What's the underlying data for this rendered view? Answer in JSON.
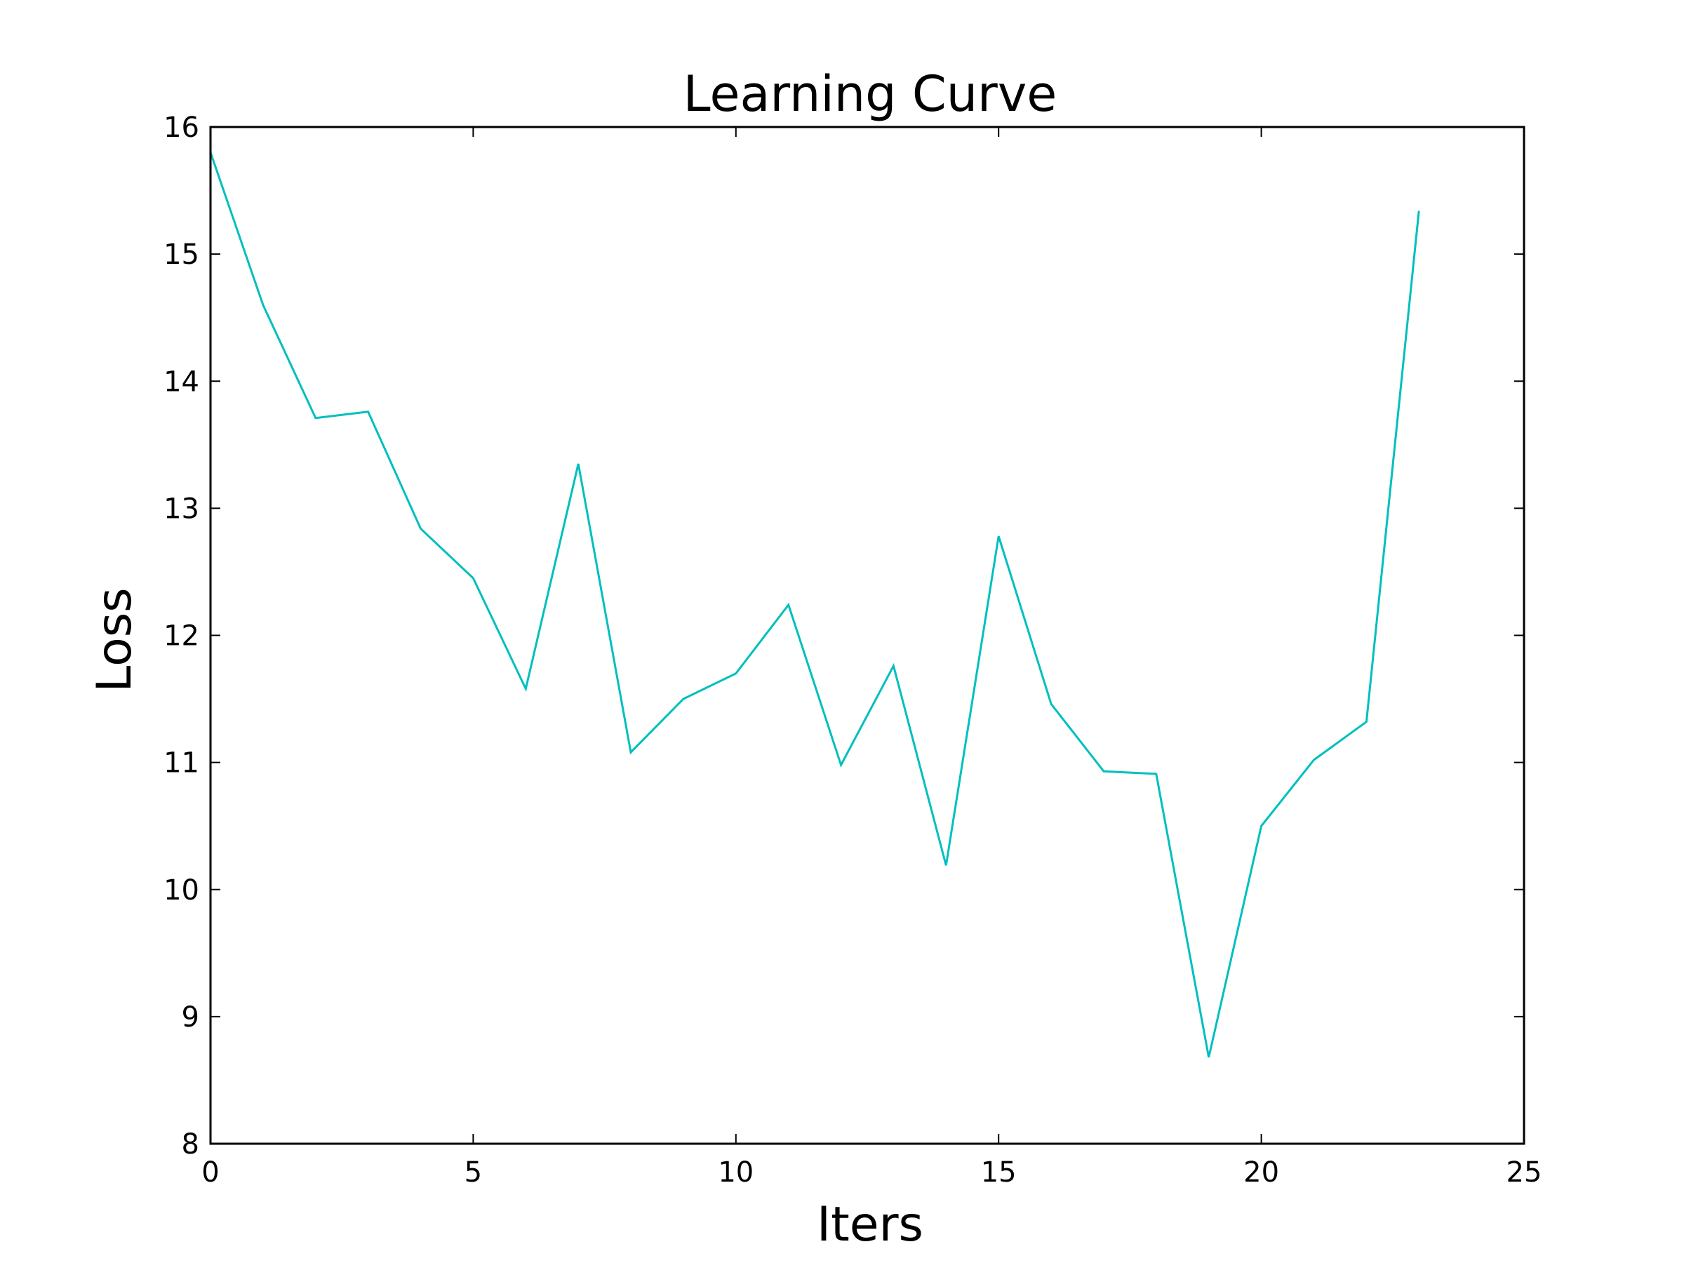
{
  "chart_data": {
    "type": "line",
    "title": "Learning Curve",
    "xlabel": "Iters",
    "ylabel": "Loss",
    "xlim": [
      0,
      25
    ],
    "ylim": [
      8,
      16
    ],
    "xticks": [
      0,
      5,
      10,
      15,
      20,
      25
    ],
    "yticks": [
      8,
      9,
      10,
      11,
      12,
      13,
      14,
      15,
      16
    ],
    "grid": false,
    "series": [
      {
        "color": "#00BFBF",
        "x": [
          0,
          1,
          2,
          3,
          4,
          5,
          6,
          7,
          8,
          9,
          10,
          11,
          12,
          13,
          14,
          15,
          16,
          17,
          18,
          19,
          20,
          21,
          22,
          23
        ],
        "y": [
          15.8,
          14.6,
          13.71,
          13.76,
          12.84,
          12.45,
          11.58,
          13.35,
          11.08,
          11.5,
          11.7,
          12.24,
          10.98,
          11.76,
          10.19,
          12.78,
          11.46,
          10.93,
          10.91,
          8.68,
          10.5,
          11.02,
          11.32,
          15.34
        ]
      }
    ]
  }
}
